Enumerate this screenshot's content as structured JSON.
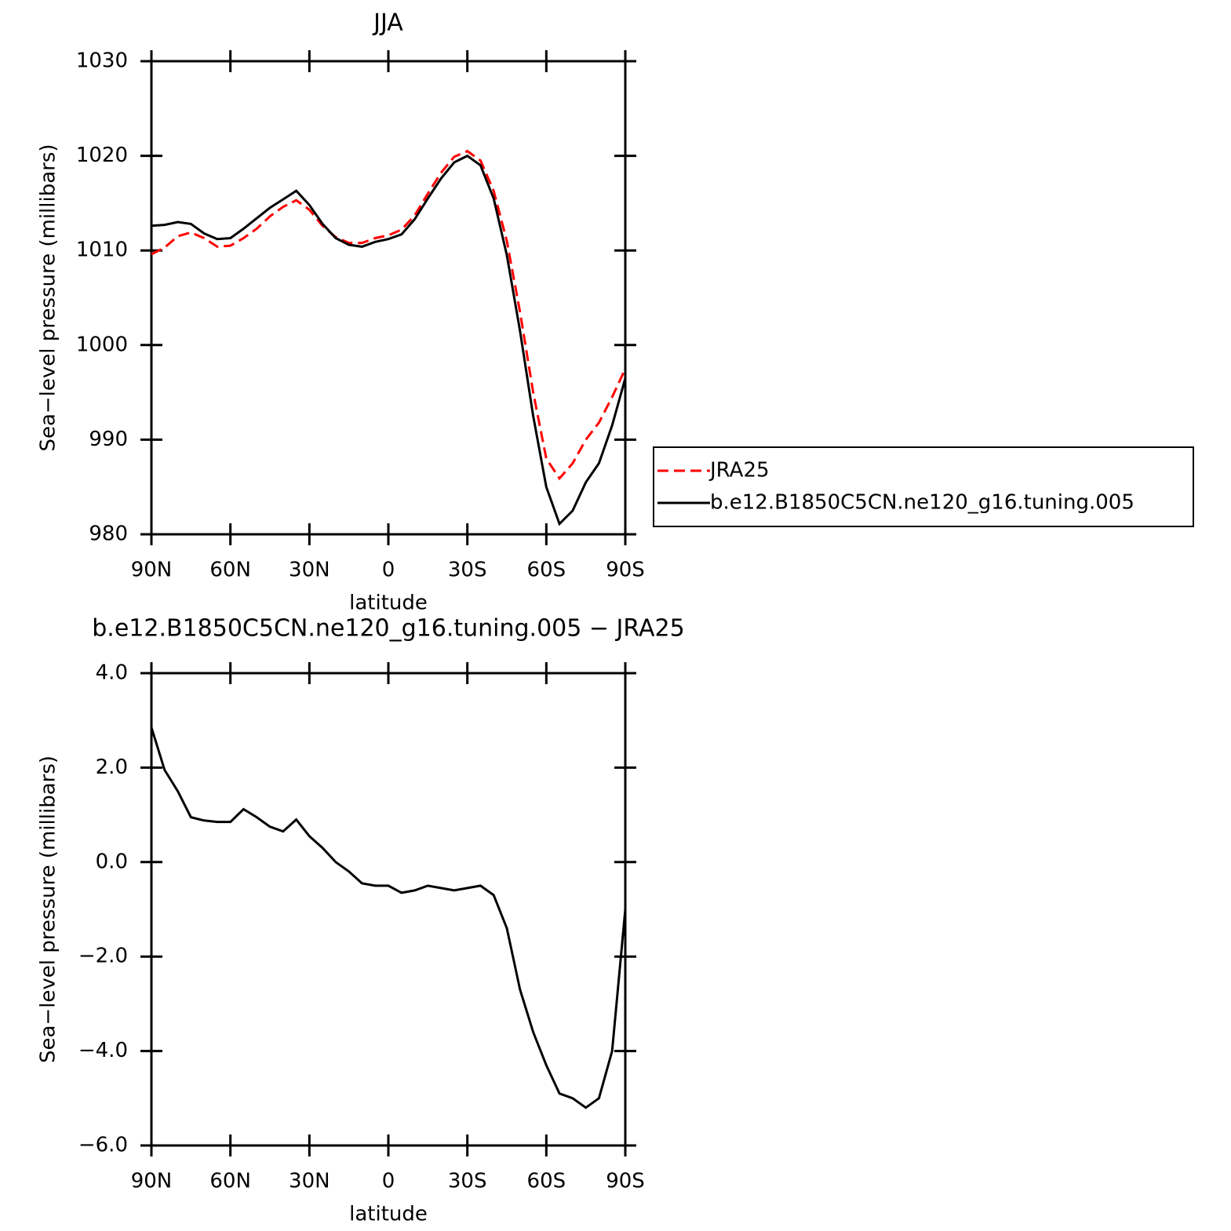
{
  "chart_data": [
    {
      "type": "line",
      "title": "JJA",
      "xlabel": "latitude",
      "ylabel": "Sea−level pressure (millibars)",
      "x": [
        90,
        85,
        80,
        75,
        70,
        65,
        60,
        55,
        50,
        45,
        40,
        35,
        30,
        25,
        20,
        15,
        10,
        5,
        0,
        -5,
        -10,
        -15,
        -20,
        -25,
        -30,
        -35,
        -40,
        -45,
        -50,
        -55,
        -60,
        -65,
        -70,
        -75,
        -80,
        -85,
        -90
      ],
      "xlim": [
        90,
        -90
      ],
      "xticks": [
        {
          "value": 90,
          "label": "90N"
        },
        {
          "value": 60,
          "label": "60N"
        },
        {
          "value": 30,
          "label": "30N"
        },
        0,
        {
          "value": -30,
          "label": "30S"
        },
        {
          "value": -60,
          "label": "60S"
        },
        {
          "value": -90,
          "label": "90S"
        }
      ],
      "ylim": [
        980,
        1030
      ],
      "yticks": [
        980,
        990,
        1000,
        1010,
        1020,
        1030
      ],
      "legend": "right",
      "series": [
        {
          "name": "JRA25",
          "color": "#ff0000",
          "dash": true,
          "values": [
            1009.6,
            1010.3,
            1011.5,
            1011.9,
            1011.3,
            1010.4,
            1010.5,
            1011.3,
            1012.3,
            1013.6,
            1014.6,
            1015.3,
            1014.3,
            1012.6,
            1011.4,
            1010.8,
            1010.8,
            1011.3,
            1011.6,
            1012.2,
            1013.7,
            1016.0,
            1018.2,
            1019.9,
            1020.5,
            1019.5,
            1016.3,
            1011.0,
            1003.5,
            995.0,
            988.0,
            985.9,
            987.5,
            990.0,
            991.8,
            994.5,
            997.5
          ]
        },
        {
          "name": "b.e12.B1850C5CN.ne120_g16.tuning.005",
          "color": "#000000",
          "dash": false,
          "values": [
            1012.6,
            1012.7,
            1013.0,
            1012.8,
            1011.8,
            1011.2,
            1011.3,
            1012.3,
            1013.4,
            1014.5,
            1015.4,
            1016.3,
            1014.8,
            1012.8,
            1011.3,
            1010.6,
            1010.4,
            1010.9,
            1011.2,
            1011.7,
            1013.3,
            1015.5,
            1017.6,
            1019.3,
            1020.0,
            1019.0,
            1015.5,
            1009.5,
            1001.5,
            992.5,
            985.0,
            981.1,
            982.5,
            985.5,
            987.5,
            991.5,
            996.5
          ]
        }
      ]
    },
    {
      "type": "line",
      "title": "b.e12.B1850C5CN.ne120_g16.tuning.005 − JRA25",
      "xlabel": "latitude",
      "ylabel": "Sea−level pressure (millibars)",
      "x": [
        90,
        85,
        80,
        75,
        70,
        65,
        60,
        55,
        50,
        45,
        40,
        35,
        30,
        25,
        20,
        15,
        10,
        5,
        0,
        -5,
        -10,
        -15,
        -20,
        -25,
        -30,
        -35,
        -40,
        -45,
        -50,
        -55,
        -60,
        -65,
        -70,
        -75,
        -80,
        -85,
        -90
      ],
      "xlim": [
        90,
        -90
      ],
      "xticks": [
        {
          "value": 90,
          "label": "90N"
        },
        {
          "value": 60,
          "label": "60N"
        },
        {
          "value": 30,
          "label": "30N"
        },
        0,
        {
          "value": -30,
          "label": "30S"
        },
        {
          "value": -60,
          "label": "60S"
        },
        {
          "value": -90,
          "label": "90S"
        }
      ],
      "ylim": [
        -6,
        4
      ],
      "yticks": [
        {
          "value": -6,
          "label": "−6.0"
        },
        {
          "value": -4,
          "label": "−4.0"
        },
        {
          "value": -2,
          "label": "−2.0"
        },
        {
          "value": 0,
          "label": "0.0"
        },
        {
          "value": 2,
          "label": "2.0"
        },
        {
          "value": 4,
          "label": "4.0"
        }
      ],
      "series": [
        {
          "color": "#000000",
          "dash": false,
          "values": [
            2.85,
            1.95,
            1.5,
            0.95,
            0.88,
            0.85,
            0.85,
            1.12,
            0.95,
            0.75,
            0.65,
            0.9,
            0.55,
            0.3,
            0.0,
            -0.2,
            -0.45,
            -0.5,
            -0.5,
            -0.65,
            -0.6,
            -0.5,
            -0.55,
            -0.6,
            -0.55,
            -0.5,
            -0.7,
            -1.4,
            -2.7,
            -3.6,
            -4.3,
            -4.9,
            -5.0,
            -5.2,
            -5.0,
            -4.0,
            -1.0
          ]
        }
      ]
    }
  ]
}
